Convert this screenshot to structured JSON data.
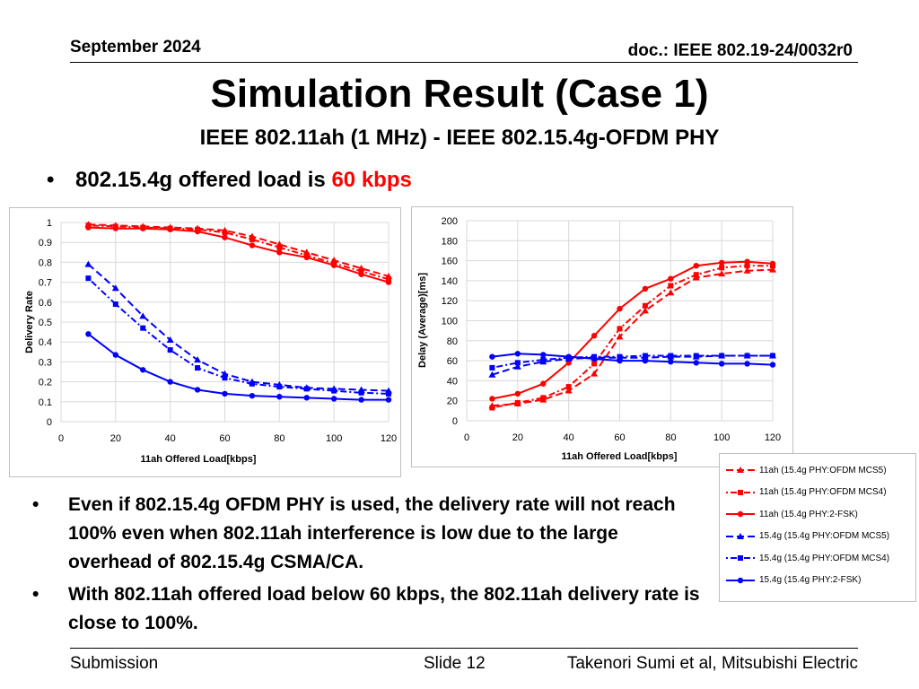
{
  "header": {
    "date": "September 2024",
    "doc": "doc.: IEEE 802.19-24/0032r0"
  },
  "title": "Simulation Result (Case 1)",
  "subtitle": "IEEE 802.11ah (1 MHz) -  IEEE 802.15.4g-OFDM PHY",
  "load_line": {
    "bullet": "•",
    "prefix": "802.15.4g offered load is ",
    "value": "60 kbps",
    "value_color": "#ff0000"
  },
  "bullets": [
    {
      "dot": "•",
      "text": "Even if 802.15.4g OFDM PHY is used, the delivery rate will not reach 100% even when 802.11ah interference is low due to the large overhead of 802.15.4g CSMA/CA."
    },
    {
      "dot": "•",
      "text": "With 802.11ah offered load below 60 kbps, the 802.11ah delivery rate is close to 100%."
    }
  ],
  "footer": {
    "submission": "Submission",
    "slide": "Slide 12",
    "author": "Takenori Sumi et al, Mitsubishi Electric"
  },
  "colors": {
    "red": "#ff0000",
    "blue": "#0000ff"
  },
  "chart_data": [
    {
      "type": "line",
      "xlabel": "11ah Offered Load[kbps]",
      "ylabel": "Delivery Rate",
      "xlim": [
        0,
        120
      ],
      "ylim": [
        0,
        1
      ],
      "xticks": [
        "0",
        "20",
        "40",
        "60",
        "80",
        "100",
        "120"
      ],
      "yticks": [
        "0",
        "0.1",
        "0.2",
        "0.3",
        "0.4",
        "0.5",
        "0.6",
        "0.7",
        "0.8",
        "0.9",
        "1"
      ],
      "grid": true,
      "x": [
        10,
        20,
        30,
        40,
        50,
        60,
        70,
        80,
        90,
        100,
        110,
        120
      ],
      "series": [
        {
          "name": "11ah (15.4g PHY:OFDM MCS5)",
          "color": "red",
          "marker": "triangle",
          "dash": "long",
          "values": [
            0.99,
            0.985,
            0.98,
            0.975,
            0.97,
            0.96,
            0.93,
            0.89,
            0.85,
            0.81,
            0.77,
            0.73
          ]
        },
        {
          "name": "11ah (15.4g PHY:OFDM MCS4)",
          "color": "red",
          "marker": "square",
          "dash": "dashdot",
          "values": [
            0.985,
            0.98,
            0.975,
            0.97,
            0.965,
            0.95,
            0.915,
            0.875,
            0.835,
            0.795,
            0.755,
            0.715
          ]
        },
        {
          "name": "11ah (15.4g PHY:2-FSK)",
          "color": "red",
          "marker": "circle",
          "dash": "solid",
          "values": [
            0.975,
            0.97,
            0.97,
            0.965,
            0.955,
            0.925,
            0.885,
            0.85,
            0.825,
            0.785,
            0.74,
            0.7
          ]
        },
        {
          "name": "15.4g (15.4g PHY:OFDM MCS5)",
          "color": "blue",
          "marker": "triangle",
          "dash": "long",
          "values": [
            0.79,
            0.67,
            0.53,
            0.41,
            0.31,
            0.24,
            0.2,
            0.185,
            0.17,
            0.165,
            0.16,
            0.155
          ]
        },
        {
          "name": "15.4g (15.4g PHY:OFDM MCS4)",
          "color": "blue",
          "marker": "square",
          "dash": "dashdot",
          "values": [
            0.72,
            0.59,
            0.47,
            0.36,
            0.27,
            0.22,
            0.19,
            0.175,
            0.165,
            0.155,
            0.145,
            0.14
          ]
        },
        {
          "name": "15.4g (15.4g PHY:2-FSK)",
          "color": "blue",
          "marker": "circle",
          "dash": "solid",
          "values": [
            0.44,
            0.335,
            0.26,
            0.2,
            0.16,
            0.14,
            0.13,
            0.125,
            0.12,
            0.115,
            0.11,
            0.11
          ]
        }
      ]
    },
    {
      "type": "line",
      "xlabel": "11ah Offered Load[kbps]",
      "ylabel": "Delay (Average)[ms]",
      "xlim": [
        0,
        120
      ],
      "ylim": [
        0,
        200
      ],
      "xticks": [
        "0",
        "20",
        "40",
        "60",
        "80",
        "100",
        "120"
      ],
      "yticks": [
        "0",
        "20",
        "40",
        "60",
        "80",
        "100",
        "120",
        "140",
        "160",
        "180",
        "200"
      ],
      "grid": true,
      "x": [
        10,
        20,
        30,
        40,
        50,
        60,
        70,
        80,
        90,
        100,
        110,
        120
      ],
      "series": [
        {
          "name": "11ah (15.4g PHY:OFDM MCS5)",
          "color": "red",
          "marker": "triangle",
          "dash": "long",
          "values": [
            15,
            17,
            21,
            30,
            47,
            84,
            110,
            128,
            143,
            147,
            150,
            151
          ]
        },
        {
          "name": "11ah (15.4g PHY:OFDM MCS4)",
          "color": "red",
          "marker": "square",
          "dash": "dashdot",
          "values": [
            13,
            18,
            23,
            34,
            57,
            92,
            115,
            135,
            146,
            153,
            155,
            155
          ]
        },
        {
          "name": "11ah (15.4g PHY:2-FSK)",
          "color": "red",
          "marker": "circle",
          "dash": "solid",
          "values": [
            22,
            27,
            37,
            58,
            85,
            112,
            132,
            142,
            155,
            158,
            159,
            157
          ]
        },
        {
          "name": "15.4g (15.4g PHY:OFDM MCS5)",
          "color": "blue",
          "marker": "triangle",
          "dash": "long",
          "values": [
            46,
            54,
            59,
            62,
            63,
            63,
            63,
            64,
            64,
            65,
            65,
            65
          ]
        },
        {
          "name": "15.4g (15.4g PHY:OFDM MCS4)",
          "color": "blue",
          "marker": "square",
          "dash": "dashdot",
          "values": [
            53,
            58,
            61,
            63,
            64,
            64,
            65,
            65,
            65,
            65,
            65,
            65
          ]
        },
        {
          "name": "15.4g (15.4g PHY:2-FSK)",
          "color": "blue",
          "marker": "circle",
          "dash": "solid",
          "values": [
            64,
            67,
            66,
            64,
            62,
            60,
            60,
            59,
            58,
            57,
            57,
            56
          ]
        }
      ]
    }
  ]
}
